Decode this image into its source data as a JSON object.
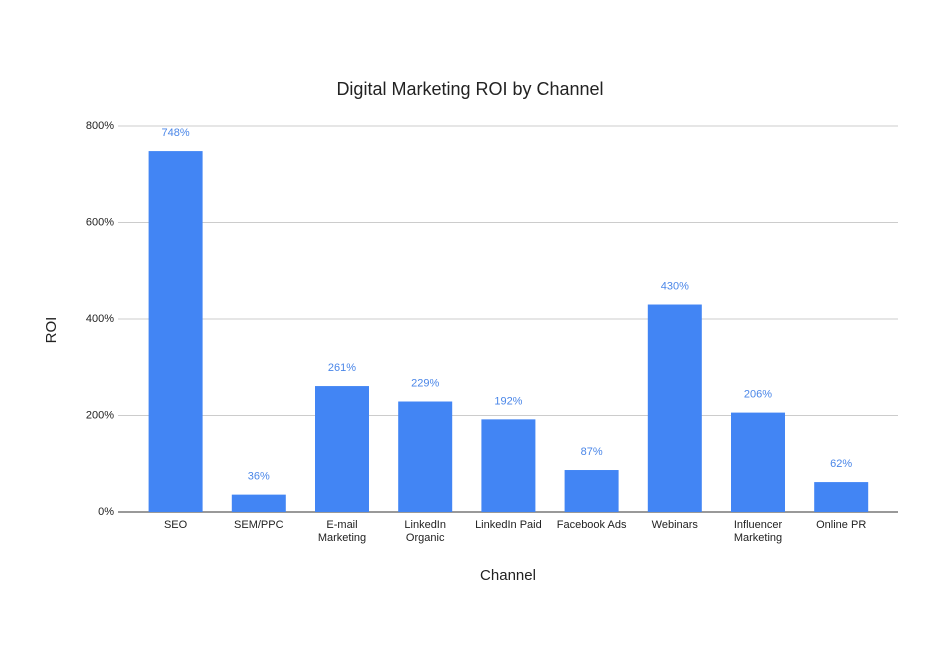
{
  "chart_data": {
    "type": "bar",
    "title": "Digital Marketing ROI by Channel",
    "x_label": "Channel",
    "y_label": "ROI",
    "categories": [
      "SEO",
      "SEM/PPC",
      "E-mail Marketing",
      "LinkedIn Organic",
      "LinkedIn Paid",
      "Facebook Ads",
      "Webinars",
      "Influencer Marketing",
      "Online PR"
    ],
    "values": [
      748,
      36,
      261,
      229,
      192,
      87,
      430,
      206,
      62
    ],
    "value_labels": [
      "748%",
      "36%",
      "261%",
      "229%",
      "192%",
      "87%",
      "430%",
      "206%",
      "62%"
    ],
    "color": "#4285f4",
    "ylim": [
      0,
      800
    ],
    "yticks": [
      {
        "value": 0,
        "label": "0%"
      },
      {
        "value": 200,
        "label": "200%"
      },
      {
        "value": 400,
        "label": "400%"
      },
      {
        "value": 600,
        "label": "600%"
      },
      {
        "value": 800,
        "label": "800%"
      }
    ],
    "grid": true
  }
}
